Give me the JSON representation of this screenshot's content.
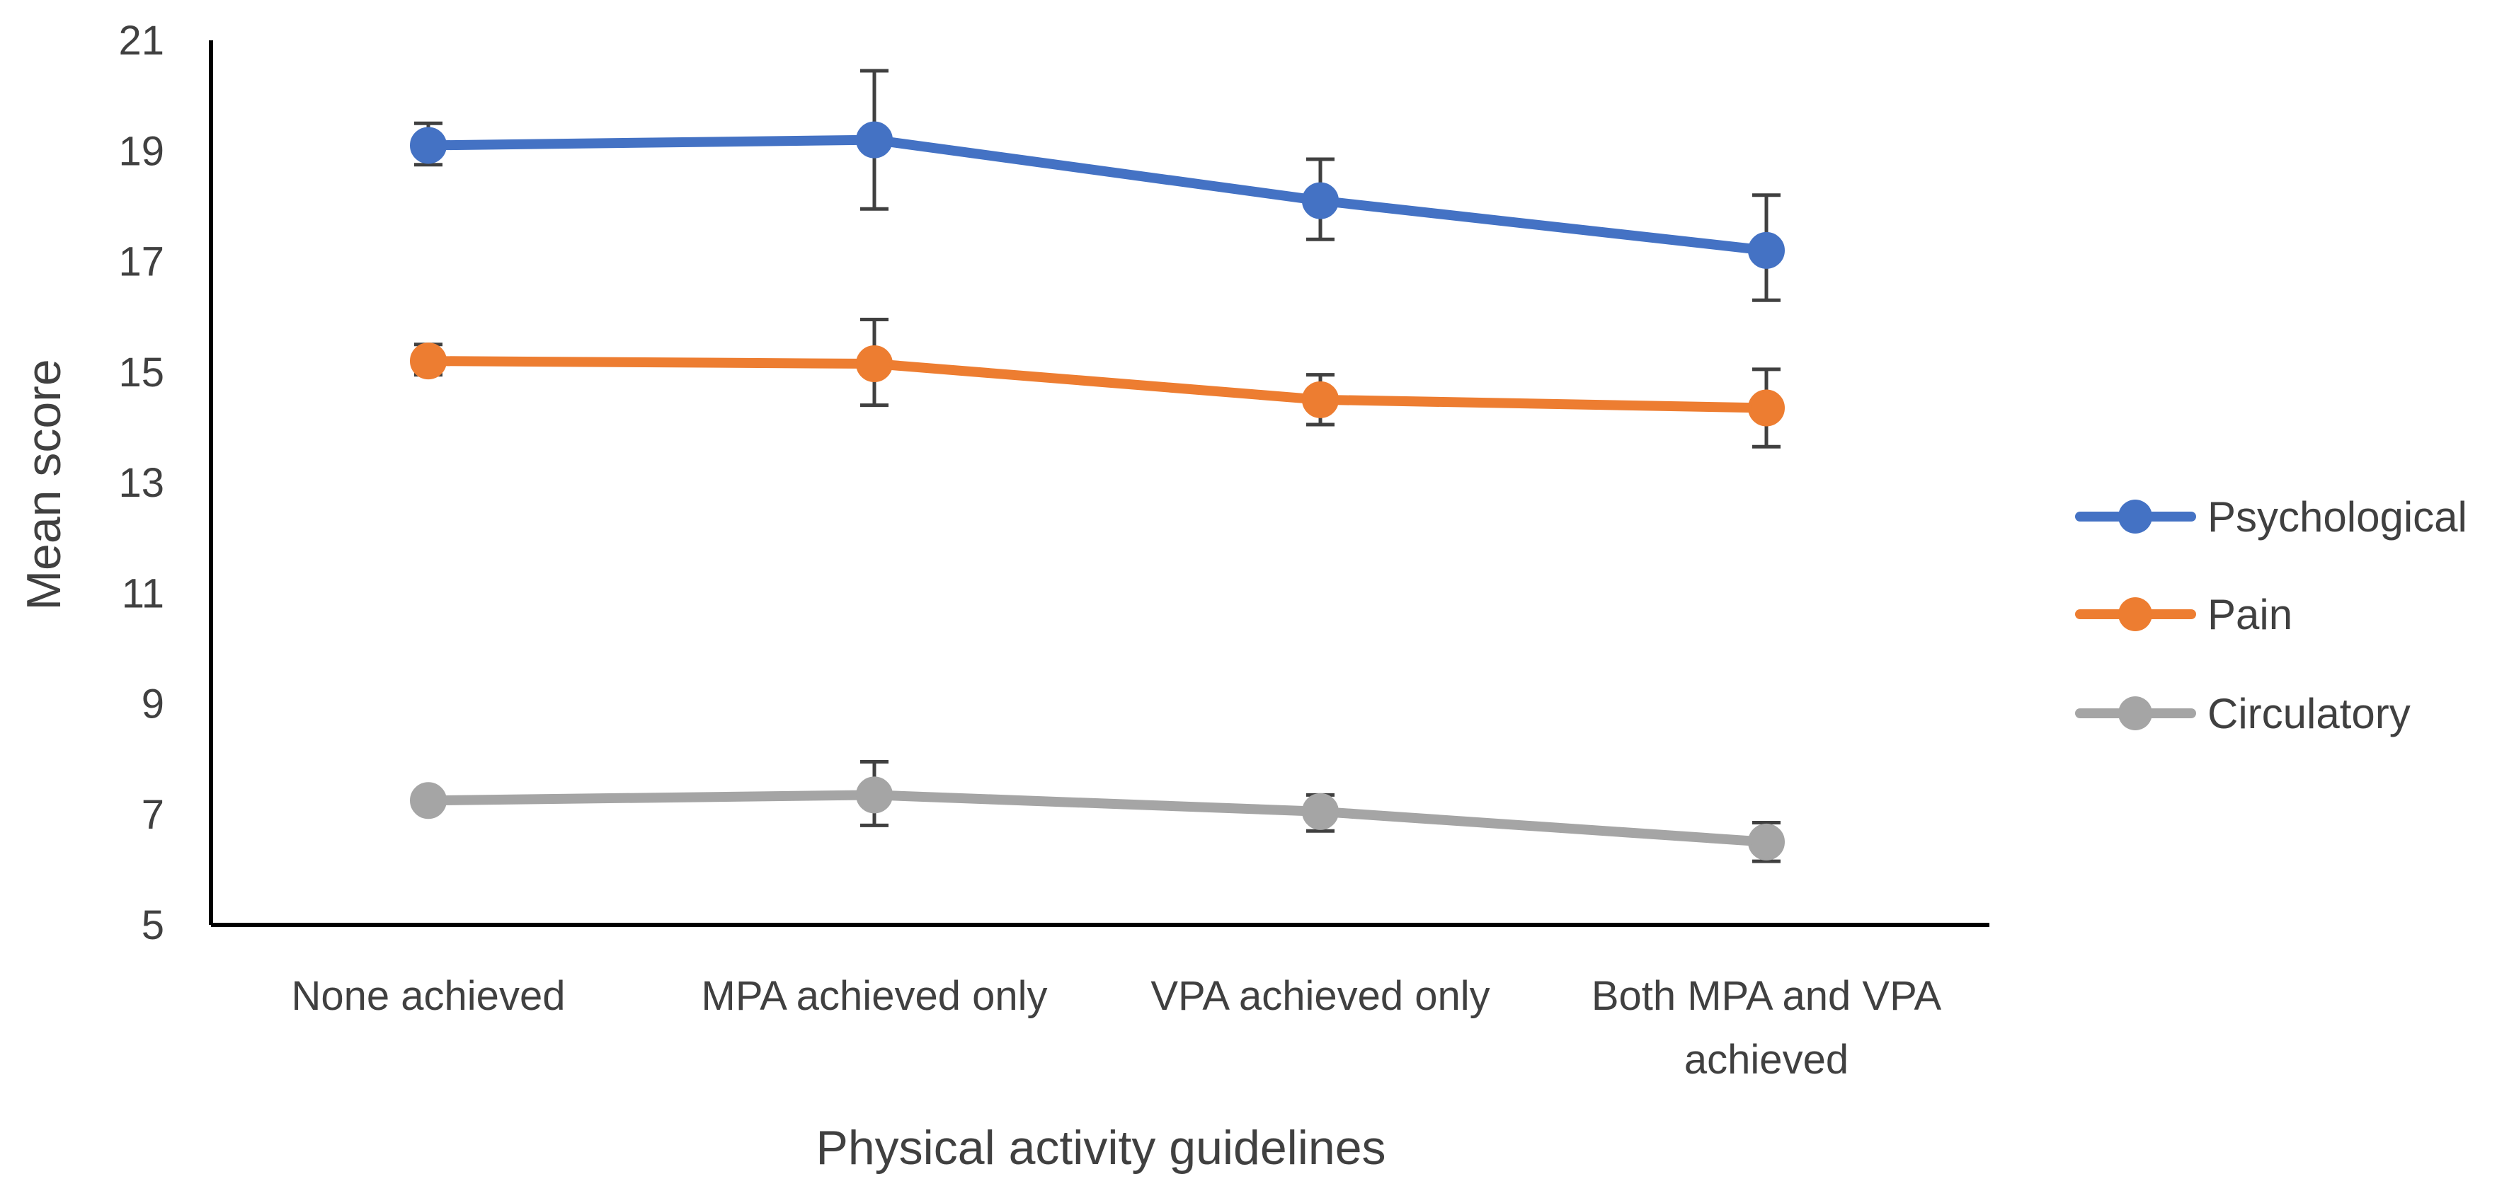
{
  "chart_data": {
    "type": "line",
    "title": "",
    "xlabel": "Physical activity guidelines",
    "ylabel": "Mean score",
    "ylim": [
      5,
      21
    ],
    "yticks": [
      5,
      7,
      9,
      11,
      13,
      15,
      17,
      19,
      21
    ],
    "grid": false,
    "legend_position": "right",
    "categories": [
      [
        "None achieved"
      ],
      [
        "MPA achieved only"
      ],
      [
        "VPA achieved only"
      ],
      [
        "Both MPA and VPA",
        "achieved"
      ]
    ],
    "series": [
      {
        "name": "Psychological",
        "color": "#4472C4",
        "values": [
          19.1,
          19.2,
          18.1,
          17.2
        ],
        "error_low": [
          18.75,
          17.95,
          17.4,
          16.3
        ],
        "error_high": [
          19.5,
          20.45,
          18.85,
          18.2
        ]
      },
      {
        "name": "Pain",
        "color": "#ED7D31",
        "values": [
          15.2,
          15.15,
          14.5,
          14.35
        ],
        "error_low": [
          14.95,
          14.4,
          14.05,
          13.65
        ],
        "error_high": [
          15.5,
          15.95,
          14.95,
          15.05
        ]
      },
      {
        "name": "Circulatory",
        "color": "#A5A5A5",
        "values": [
          7.25,
          7.35,
          7.05,
          6.5
        ],
        "error_low": [
          7.15,
          6.8,
          6.7,
          6.15
        ],
        "error_high": [
          7.35,
          7.95,
          7.35,
          6.85
        ]
      }
    ]
  }
}
